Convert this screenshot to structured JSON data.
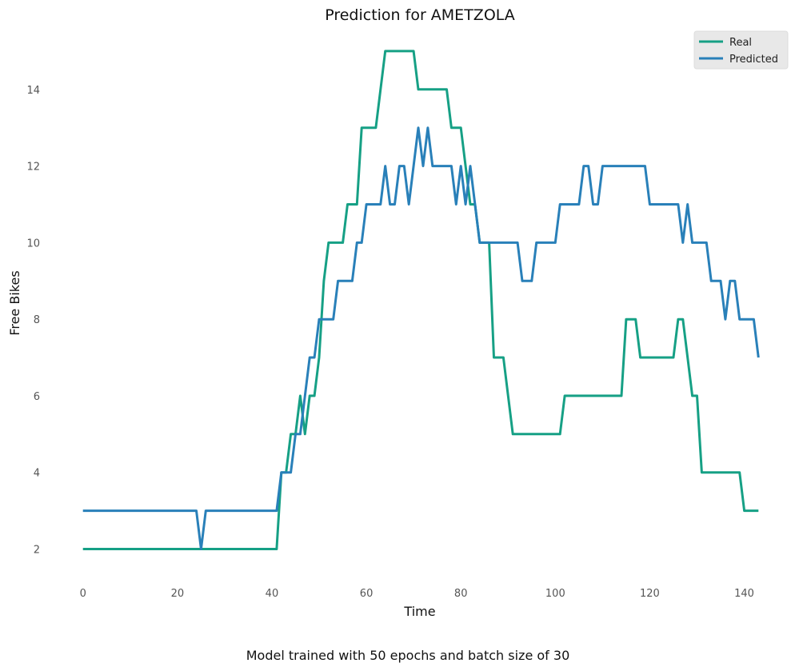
{
  "chart_data": {
    "type": "line",
    "title": "Prediction for AMETZOLA",
    "xlabel": "Time",
    "ylabel": "Free Bikes",
    "caption": "Model trained with 50 epochs and batch size of 30",
    "xlim": [
      -3,
      146
    ],
    "ylim": [
      1.3,
      15.5
    ],
    "xticks": [
      0,
      20,
      40,
      60,
      80,
      100,
      120,
      140
    ],
    "yticks": [
      2,
      4,
      6,
      8,
      10,
      12,
      14
    ],
    "grid": false,
    "legend_position": "top-right",
    "series": [
      {
        "name": "Real",
        "color": "#16a085",
        "points": [
          [
            0,
            2
          ],
          [
            41,
            2
          ],
          [
            42,
            4
          ],
          [
            43,
            4
          ],
          [
            44,
            5
          ],
          [
            45,
            5
          ],
          [
            46,
            6
          ],
          [
            47,
            5
          ],
          [
            48,
            6
          ],
          [
            49,
            6
          ],
          [
            50,
            7
          ],
          [
            51,
            9
          ],
          [
            52,
            10
          ],
          [
            55,
            10
          ],
          [
            56,
            11
          ],
          [
            58,
            11
          ],
          [
            59,
            13
          ],
          [
            62,
            13
          ],
          [
            63,
            14
          ],
          [
            64,
            15
          ],
          [
            70,
            15
          ],
          [
            71,
            14
          ],
          [
            77,
            14
          ],
          [
            78,
            13
          ],
          [
            80,
            13
          ],
          [
            81,
            12
          ],
          [
            82,
            11
          ],
          [
            83,
            11
          ],
          [
            84,
            10
          ],
          [
            86,
            10
          ],
          [
            87,
            7
          ],
          [
            89,
            7
          ],
          [
            90,
            6
          ],
          [
            91,
            5
          ],
          [
            101,
            5
          ],
          [
            102,
            6
          ],
          [
            114,
            6
          ],
          [
            115,
            8
          ],
          [
            117,
            8
          ],
          [
            118,
            7
          ],
          [
            125,
            7
          ],
          [
            126,
            8
          ],
          [
            127,
            8
          ],
          [
            128,
            7
          ],
          [
            129,
            6
          ],
          [
            130,
            6
          ],
          [
            131,
            4
          ],
          [
            139,
            4
          ],
          [
            140,
            3
          ],
          [
            143,
            3
          ]
        ]
      },
      {
        "name": "Predicted",
        "color": "#2980b9",
        "points": [
          [
            0,
            3
          ],
          [
            24,
            3
          ],
          [
            25,
            2
          ],
          [
            26,
            3
          ],
          [
            41,
            3
          ],
          [
            42,
            4
          ],
          [
            44,
            4
          ],
          [
            45,
            5
          ],
          [
            46,
            5
          ],
          [
            47,
            6
          ],
          [
            48,
            7
          ],
          [
            49,
            7
          ],
          [
            50,
            8
          ],
          [
            53,
            8
          ],
          [
            54,
            9
          ],
          [
            57,
            9
          ],
          [
            58,
            10
          ],
          [
            59,
            10
          ],
          [
            60,
            11
          ],
          [
            63,
            11
          ],
          [
            64,
            12
          ],
          [
            65,
            11
          ],
          [
            66,
            11
          ],
          [
            67,
            12
          ],
          [
            68,
            12
          ],
          [
            69,
            11
          ],
          [
            70,
            12
          ],
          [
            71,
            13
          ],
          [
            72,
            12
          ],
          [
            73,
            13
          ],
          [
            74,
            12
          ],
          [
            78,
            12
          ],
          [
            79,
            11
          ],
          [
            80,
            12
          ],
          [
            81,
            11
          ],
          [
            82,
            12
          ],
          [
            83,
            11
          ],
          [
            84,
            10
          ],
          [
            92,
            10
          ],
          [
            93,
            9
          ],
          [
            95,
            9
          ],
          [
            96,
            10
          ],
          [
            100,
            10
          ],
          [
            101,
            11
          ],
          [
            105,
            11
          ],
          [
            106,
            12
          ],
          [
            107,
            12
          ],
          [
            108,
            11
          ],
          [
            109,
            11
          ],
          [
            110,
            12
          ],
          [
            119,
            12
          ],
          [
            120,
            11
          ],
          [
            126,
            11
          ],
          [
            127,
            10
          ],
          [
            128,
            11
          ],
          [
            129,
            10
          ],
          [
            132,
            10
          ],
          [
            133,
            9
          ],
          [
            135,
            9
          ],
          [
            136,
            8
          ],
          [
            137,
            9
          ],
          [
            138,
            9
          ],
          [
            139,
            8
          ],
          [
            142,
            8
          ],
          [
            143,
            7
          ]
        ]
      }
    ]
  }
}
